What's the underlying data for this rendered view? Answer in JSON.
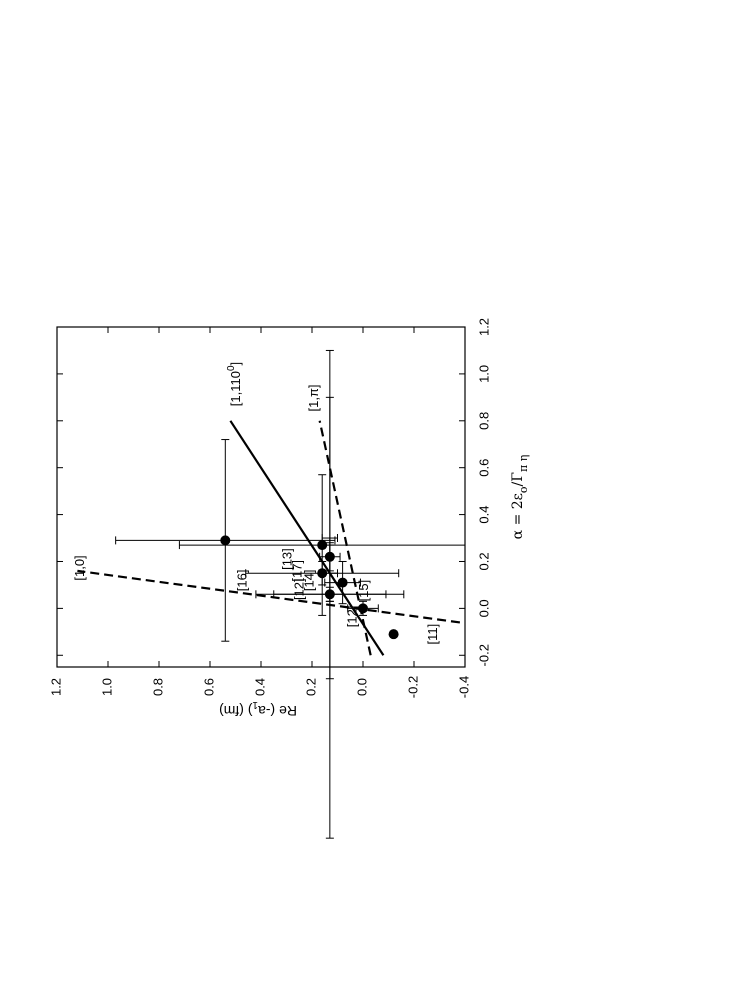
{
  "chart_data": {
    "type": "scatter",
    "title": "",
    "orientation": "rotated-90",
    "xlabel_parts": [
      "α = 2ε",
      "o",
      "/Γ",
      "π η"
    ],
    "ylabel_parts": [
      "Re (-a",
      "1",
      ") (fm)"
    ],
    "xlim": [
      -0.25,
      1.2
    ],
    "ylim": [
      -0.4,
      1.2
    ],
    "xticks": [
      -0.2,
      0.0,
      0.2,
      0.4,
      0.6,
      0.8,
      1.0,
      1.2
    ],
    "yticks": [
      -0.4,
      -0.2,
      0.0,
      0.2,
      0.4,
      0.6,
      0.8,
      1.0,
      1.2
    ],
    "xtick_labels": [
      "-0.2",
      "0.0",
      "0.2",
      "0.4",
      "0.6",
      "0.8",
      "1.0",
      "1.2"
    ],
    "ytick_labels": [
      "-0.4",
      "-0.2",
      "0.0",
      "0.2",
      "0.4",
      "0.6",
      "0.8",
      "1.0",
      "1.2"
    ],
    "grid": false,
    "points": [
      {
        "ref": "[11]",
        "x": -0.11,
        "y": -0.12
      },
      {
        "ref": "[12]",
        "x": 0.0,
        "y": 0.0,
        "xerr": 0.03,
        "yerr": 0.06
      },
      {
        "ref": "[14]",
        "x": 0.06,
        "y": 0.13,
        "xerr": 0.03,
        "yerr": 0.29
      },
      {
        "ref": "[15]",
        "x": 0.11,
        "y": 0.08,
        "xerr": 0.09,
        "yerr": 0.07
      },
      {
        "ref": "[12]",
        "x": 0.15,
        "y": 0.16,
        "xerr": 0.05,
        "yerr": 0.3
      },
      {
        "ref": "[17]",
        "x": 0.22,
        "y": 0.13,
        "xerr": 0.06,
        "yerr": 0.04
      },
      {
        "ref": "[13]",
        "x": 0.27,
        "y": 0.16,
        "xerr": 0.3,
        "yerr": 0.56
      },
      {
        "ref": "[16]",
        "x": 0.29,
        "y": 0.54,
        "xerr": 0.43,
        "yerr": 0.43
      }
    ],
    "extra_error_bars": [
      {
        "x": 0.06,
        "xerr": 1.04,
        "y": 0.13,
        "yerr": 0.22
      },
      {
        "x": 0.3,
        "xerr": 0.6,
        "y": 0.13,
        "yerr": 0.03
      },
      {
        "x": 0.15,
        "xerr": 0.12,
        "y": 0.13,
        "yerr": 0.03
      }
    ],
    "lines": [
      {
        "label": "[1,110°]",
        "style": "solid",
        "x": [
          -0.2,
          0.8
        ],
        "y": [
          -0.08,
          0.52
        ]
      },
      {
        "label": "[1,π]",
        "style": "dashed",
        "x": [
          -0.2,
          0.8
        ],
        "y": [
          -0.03,
          0.17
        ]
      },
      {
        "label": "[1,0]",
        "style": "dashed",
        "x": [
          -0.06,
          0.16
        ],
        "y": [
          -0.38,
          1.12
        ]
      }
    ],
    "line_label_text": {
      "l110": "[1,110",
      "l110_sup": "0",
      "lpi": "[1,π]",
      "l0": "[1,0]"
    }
  }
}
